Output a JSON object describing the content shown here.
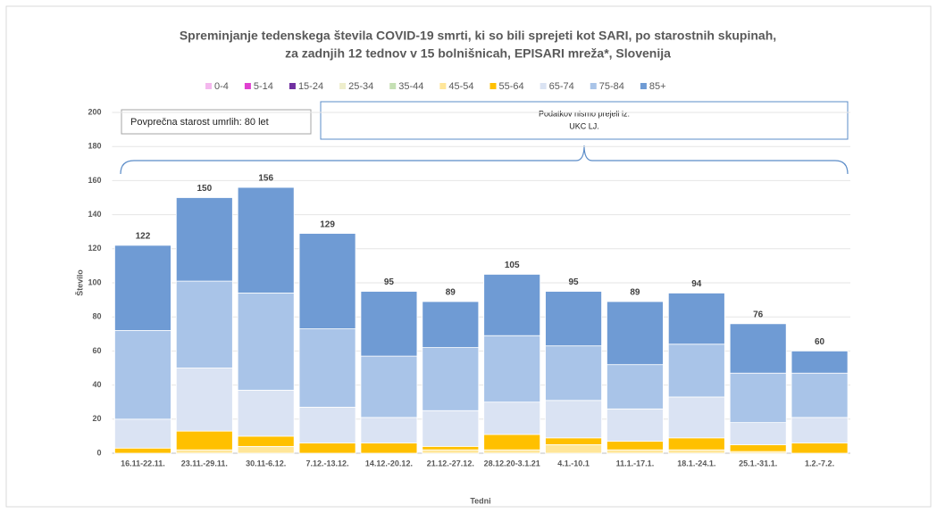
{
  "chart_data": {
    "type": "stacked_bar",
    "title": "Spreminjanje tedenskega števila COVID-19 smrti, ki so bili sprejeti kot SARI, po starostnih skupinah,",
    "subtitle": "za zadnjih 12 tednov v 15 bolnišnicah, EPISARI mreža*, Slovenija",
    "y_label": "Število",
    "x_label": "Tedni",
    "annotations": [
      "Povprečna starost umrlih: 80 let",
      "Podatkov nismo prejeli iz:",
      "UKC LJ."
    ],
    "categories": [
      "16.11-22.11.",
      "23.11.-29.11.",
      "30.11-6.12.",
      "7.12.-13.12.",
      "14.12.-20.12.",
      "21.12.-27.12.",
      "28.12.20-3.1.21",
      "4.1.-10.1",
      "11.1.-17.1.",
      "18.1.-24.1.",
      "25.1.-31.1.",
      "1.2.-7.2."
    ],
    "series": [
      {
        "name": "0-4",
        "color": "#f4b8ee",
        "values": [
          0,
          0,
          0,
          0,
          0,
          0,
          0,
          0,
          0,
          0,
          0,
          0
        ]
      },
      {
        "name": "5-14",
        "color": "#e040d0",
        "values": [
          0,
          0,
          0,
          0,
          0,
          0,
          0,
          0,
          0,
          0,
          0,
          0
        ]
      },
      {
        "name": "15-24",
        "color": "#7030a0",
        "values": [
          0,
          0,
          0,
          0,
          0,
          0,
          0,
          0,
          0,
          0,
          0,
          0
        ]
      },
      {
        "name": "25-34",
        "color": "#eeeecc",
        "values": [
          0,
          0,
          0,
          0,
          0,
          0,
          0,
          0,
          0,
          0,
          0,
          0
        ]
      },
      {
        "name": "35-44",
        "color": "#c5e0b4",
        "values": [
          0,
          0,
          0,
          0,
          0,
          0,
          0,
          0,
          0,
          0,
          0,
          0
        ]
      },
      {
        "name": "45-54",
        "color": "#ffe699",
        "values": [
          0,
          2,
          4,
          0,
          0,
          2,
          2,
          5,
          2,
          2,
          1,
          0
        ]
      },
      {
        "name": "55-64",
        "color": "#ffc000",
        "values": [
          3,
          11,
          6,
          6,
          6,
          2,
          9,
          4,
          5,
          7,
          4,
          6
        ]
      },
      {
        "name": "65-74",
        "color": "#dae3f3",
        "values": [
          17,
          37,
          27,
          21,
          15,
          21,
          19,
          22,
          19,
          24,
          13,
          15
        ]
      },
      {
        "name": "75-84",
        "color": "#a9c4e8",
        "values": [
          52,
          51,
          57,
          46,
          36,
          37,
          39,
          32,
          26,
          31,
          29,
          26
        ]
      },
      {
        "name": "85+",
        "color": "#6f9bd4",
        "values": [
          50,
          49,
          62,
          56,
          38,
          27,
          36,
          32,
          37,
          30,
          29,
          13
        ]
      }
    ],
    "totals": [
      122,
      150,
      156,
      129,
      95,
      89,
      105,
      95,
      89,
      94,
      76,
      60
    ],
    "ylim": [
      0,
      200
    ],
    "yticks": [
      0,
      20,
      40,
      60,
      80,
      100,
      120,
      140,
      160,
      180,
      200
    ],
    "grid": true
  }
}
